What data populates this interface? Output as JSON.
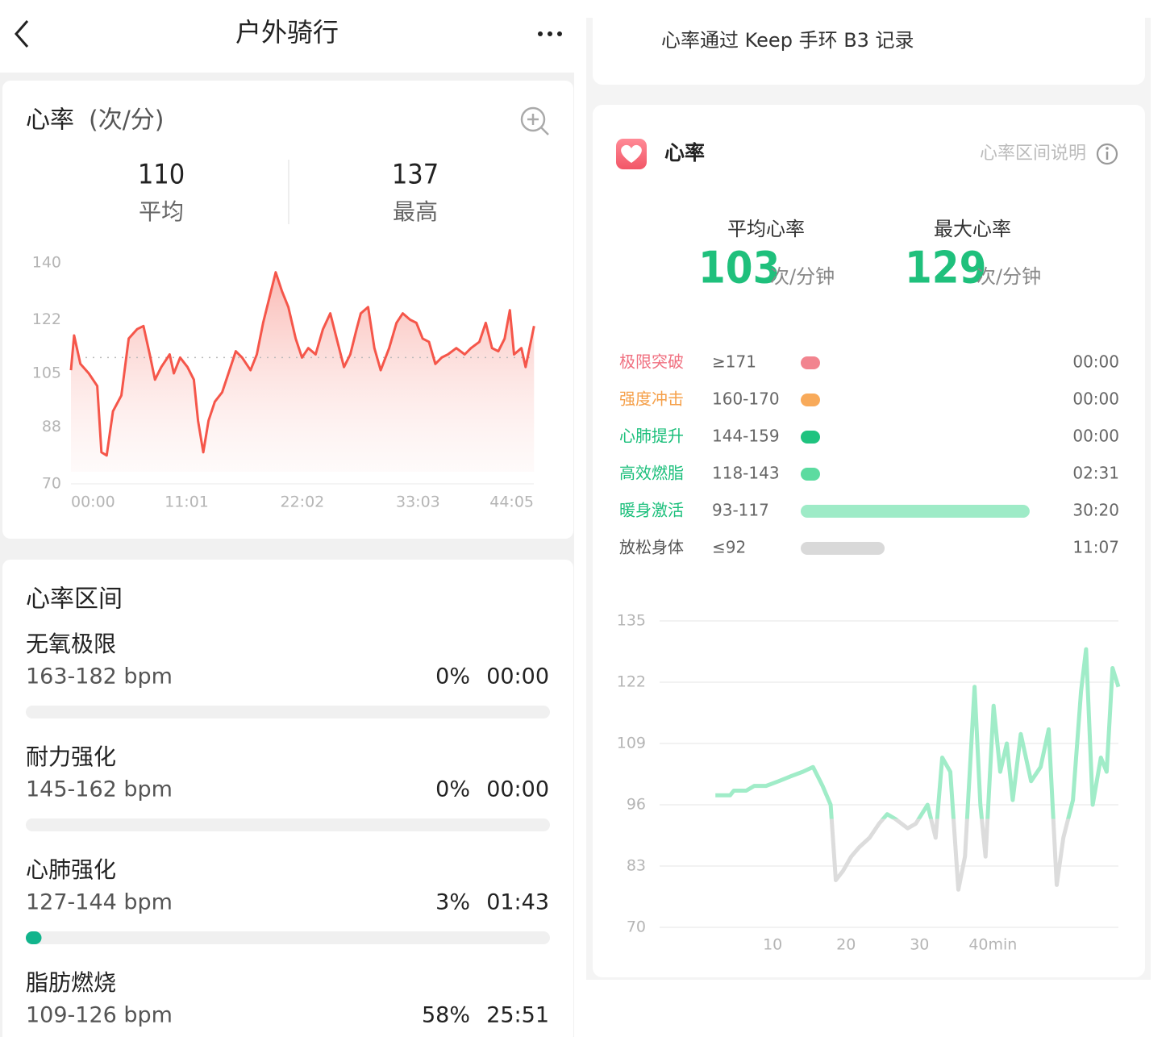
{
  "nav": {
    "title": "户外骑行"
  },
  "hr_card": {
    "title": "心率",
    "unit": "(次/分)",
    "stats": [
      {
        "value": 110,
        "label": "平均"
      },
      {
        "value": 137,
        "label": "最高"
      }
    ]
  },
  "zones_card": {
    "title": "心率区间",
    "zones": [
      {
        "name": "无氧极限",
        "range": "163-182 bpm",
        "percent": 0,
        "percent_label": "0%",
        "duration": "00:00"
      },
      {
        "name": "耐力强化",
        "range": "145-162 bpm",
        "percent": 0,
        "percent_label": "0%",
        "duration": "00:00"
      },
      {
        "name": "心肺强化",
        "range": "127-144 bpm",
        "percent": 3,
        "percent_label": "3%",
        "duration": "01:43"
      },
      {
        "name": "脂肪燃烧",
        "range": "109-126 bpm",
        "percent": 58,
        "percent_label": "58%",
        "duration": "25:51"
      }
    ],
    "bar_color": "#12b48c"
  },
  "device_note": "心率通过 Keep 手环 B3 记录",
  "keep_card": {
    "title": "心率",
    "help": "心率区间说明",
    "stats": [
      {
        "label": "平均心率",
        "value": 103,
        "unit": "次/分钟"
      },
      {
        "label": "最大心率",
        "value": 129,
        "unit": "次/分钟"
      }
    ],
    "zones": [
      {
        "name": "极限突破",
        "range": "≥171",
        "duration": "00:00",
        "color": "#f2848f",
        "name_color": "#f07080"
      },
      {
        "name": "强度冲击",
        "range": "160-170",
        "duration": "00:00",
        "color": "#f8aa5a",
        "name_color": "#f5a04a"
      },
      {
        "name": "心肺提升",
        "range": "144-159",
        "duration": "00:00",
        "color": "#1fc37f",
        "name_color": "#1bbf7b"
      },
      {
        "name": "高效燃脂",
        "range": "118-143",
        "duration": "02:31",
        "color": "#5cdba0",
        "name_color": "#1bbf7b"
      },
      {
        "name": "暖身激活",
        "range": "93-117",
        "duration": "30:20",
        "color": "#9eebc7",
        "name_color": "#1bbf7b"
      },
      {
        "name": "放松身体",
        "range": "≤92",
        "duration": "11:07",
        "color": "#d9d9d9",
        "name_color": "#555555"
      }
    ]
  },
  "chart_data": [
    {
      "type": "line",
      "x": [
        0,
        0.3,
        0.9,
        1.7,
        2.5,
        2.9,
        3.4,
        4.0,
        4.8,
        5.5,
        6.3,
        6.9,
        7.5,
        8.0,
        8.6,
        9.4,
        9.8,
        10.4,
        11.1,
        11.7,
        12.1,
        12.6,
        13.1,
        13.7,
        14.4,
        15.1,
        15.7,
        16.3,
        17.1,
        17.7,
        18.3,
        18.9,
        19.5,
        20.1,
        20.7,
        21.4,
        22.0,
        22.6,
        23.3,
        24.0,
        24.7,
        25.3,
        26.0,
        26.6,
        27.2,
        27.6,
        28.3,
        28.9,
        29.5,
        30.3,
        31.0,
        31.6,
        32.3,
        32.9,
        33.5,
        34.1,
        34.7,
        35.3,
        35.9,
        36.7,
        37.5,
        38.1,
        38.9,
        39.5,
        40.1,
        40.7,
        41.3,
        41.8,
        42.2,
        42.9,
        43.3,
        44.1
      ],
      "series": [
        {
          "color": "#f5564a",
          "values": [
            106,
            117,
            108,
            105,
            101,
            80,
            79,
            93,
            98,
            116,
            119,
            120,
            111,
            103,
            107,
            111,
            105,
            110,
            107,
            103,
            90,
            80,
            90,
            96,
            99,
            106,
            112,
            110,
            106,
            111,
            121,
            129,
            137,
            131,
            126,
            116,
            110,
            113,
            111,
            119,
            124,
            116,
            107,
            111,
            119,
            124,
            126,
            113,
            106,
            113,
            121,
            124,
            122,
            121,
            116,
            115,
            108,
            110,
            111,
            113,
            111,
            113,
            115,
            121,
            113,
            112,
            116,
            125,
            111,
            113,
            107,
            120
          ]
        }
      ],
      "xlim": [
        0,
        44.08
      ],
      "xticks": [
        {
          "value": 0,
          "label": "00:00"
        },
        {
          "value": 11.02,
          "label": "11:01"
        },
        {
          "value": 22.03,
          "label": "22:02"
        },
        {
          "value": 33.05,
          "label": "33:03"
        },
        {
          "value": 44.08,
          "label": "44:05"
        }
      ],
      "ylim": [
        70,
        140
      ],
      "yticks": [
        140,
        122,
        105,
        88,
        70
      ]
    },
    {
      "type": "line",
      "x": [
        2.2,
        4.2,
        4.7,
        6.4,
        7.5,
        9.1,
        10.8,
        12.4,
        14.1,
        15.5,
        16.8,
        17.9,
        18.6,
        19.6,
        20.7,
        21.8,
        23.2,
        24.5,
        25.6,
        26.7,
        28.4,
        29.5,
        31.1,
        32.2,
        33.1,
        34.2,
        35.3,
        36.2,
        37.5,
        38.3,
        39.0,
        40.1,
        41.0,
        41.9,
        42.7,
        43.8,
        45.2,
        46.5,
        47.6,
        48.7,
        49.6,
        50.9,
        52.0,
        52.7,
        53.6,
        54.7,
        55.5,
        56.3,
        57.1
      ],
      "series": [
        {
          "color": "#a0ecc8",
          "low_color": "#dcdcdc",
          "values": [
            98,
            98,
            99,
            99,
            100,
            100,
            101,
            102,
            103,
            104,
            100,
            96,
            80,
            82,
            85,
            87,
            89,
            92,
            94,
            93,
            91,
            92,
            96,
            89,
            106,
            103,
            78,
            85,
            121,
            96,
            85,
            117,
            103,
            109,
            97,
            111,
            101,
            104,
            112,
            79,
            89,
            97,
            120,
            129,
            96,
            106,
            103,
            125,
            121
          ]
        }
      ],
      "xlim": [
        -5.4,
        57.1
      ],
      "xticks": [
        10,
        20,
        30,
        {
          "value": 40,
          "label": "40min"
        }
      ],
      "ylim": [
        70,
        135
      ],
      "yticks": [
        135,
        122,
        109,
        96,
        83,
        70
      ],
      "grid": true
    }
  ]
}
